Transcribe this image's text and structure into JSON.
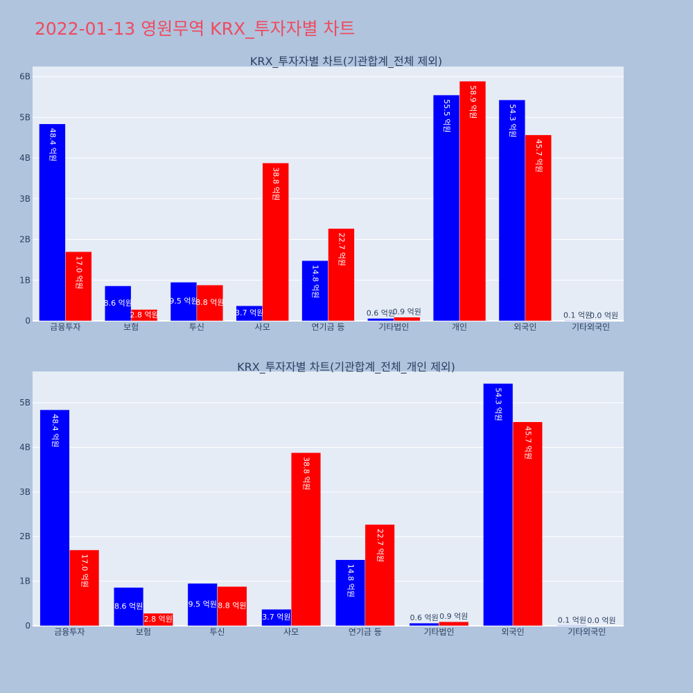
{
  "page": {
    "title": "2022-01-13 영원무역 KRX_투자자별 차트"
  },
  "colors": {
    "background": "#b0c4de",
    "plot_bg": "#e5ecf6",
    "grid": "#ffffff",
    "buy": "#0000ff",
    "sell": "#ff0000",
    "title": "#ef4a5f",
    "text": "#2a3f5f"
  },
  "chart_data": [
    {
      "type": "bar",
      "title": "KRX_투자자별 차트(기관합계_전체 제외)",
      "categories": [
        "금융투자",
        "보험",
        "투신",
        "사모",
        "연기금 등",
        "기타법인",
        "개인",
        "외국인",
        "기타외국인"
      ],
      "series": [
        {
          "color": "#0000ff",
          "values": [
            4.84,
            0.86,
            0.95,
            0.37,
            1.48,
            0.06,
            5.55,
            5.43,
            0.01
          ],
          "labels": [
            "48.4 억원",
            "8.6 억원",
            "9.5 억원",
            "3.7 억원",
            "14.8 억원",
            "0.6 억원",
            "55.5 억원",
            "54.3 억원",
            "0.1 억원"
          ]
        },
        {
          "color": "#ff0000",
          "values": [
            1.7,
            0.28,
            0.88,
            3.88,
            2.27,
            0.09,
            5.89,
            4.57,
            0.0
          ],
          "labels": [
            "17.0 억원",
            "2.8 억원",
            "8.8 억원",
            "38.8 억원",
            "22.7 억원",
            "0.9 억원",
            "58.9 억원",
            "45.7 억원",
            "0.0 억원"
          ]
        }
      ],
      "yticks": [
        0,
        1,
        2,
        3,
        4,
        5,
        6
      ],
      "ytick_labels": [
        "0",
        "1B",
        "2B",
        "3B",
        "4B",
        "5B",
        "6B"
      ],
      "ylim": [
        0,
        6.25
      ]
    },
    {
      "type": "bar",
      "title": "KRX_투자자별 차트(기관합계_전체_개인 제외)",
      "categories": [
        "금융투자",
        "보험",
        "투신",
        "사모",
        "연기금 등",
        "기타법인",
        "외국인",
        "기타외국인"
      ],
      "series": [
        {
          "color": "#0000ff",
          "values": [
            4.84,
            0.86,
            0.95,
            0.37,
            1.48,
            0.06,
            5.43,
            0.01
          ],
          "labels": [
            "48.4 억원",
            "8.6 억원",
            "9.5 억원",
            "3.7 억원",
            "14.8 억원",
            "0.6 억원",
            "54.3 억원",
            "0.1 억원"
          ]
        },
        {
          "color": "#ff0000",
          "values": [
            1.7,
            0.28,
            0.88,
            3.88,
            2.27,
            0.09,
            4.57,
            0.0
          ],
          "labels": [
            "17.0 억원",
            "2.8 억원",
            "8.8 억원",
            "38.8 억원",
            "22.7 억원",
            "0.9 억원",
            "45.7 억원",
            "0.0 억원"
          ]
        }
      ],
      "yticks": [
        0,
        1,
        2,
        3,
        4,
        5
      ],
      "ytick_labels": [
        "0",
        "1B",
        "2B",
        "3B",
        "4B",
        "5B"
      ],
      "ylim": [
        0,
        5.7
      ]
    }
  ]
}
